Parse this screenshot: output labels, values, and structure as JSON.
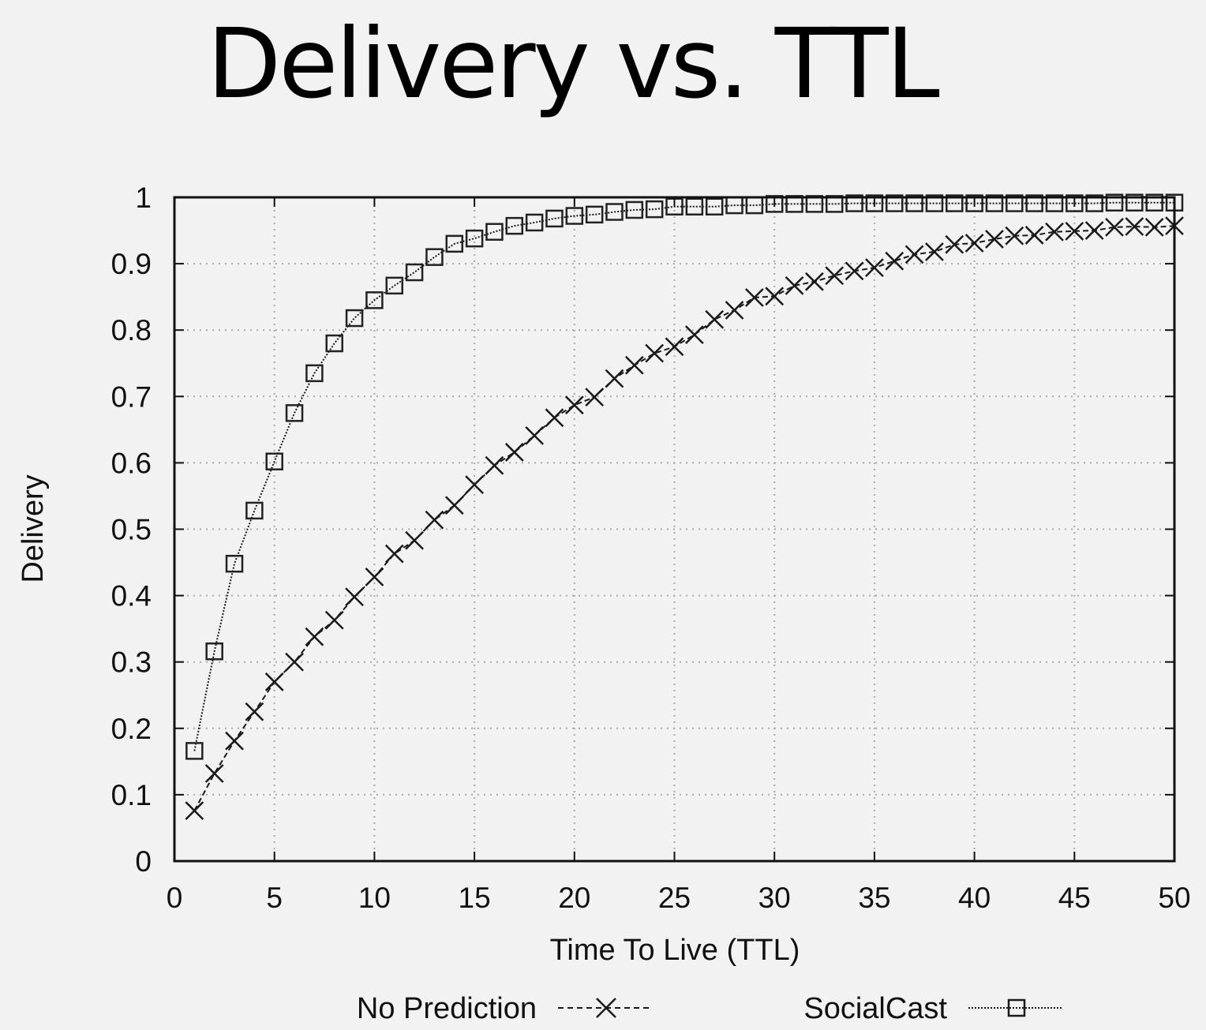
{
  "slide": {
    "title": "Delivery vs. TTL"
  },
  "chart_data": {
    "type": "line",
    "title": "Delivery vs. TTL",
    "xlabel": "Time To Live (TTL)",
    "ylabel": "Delivery",
    "xlim": [
      0,
      50
    ],
    "ylim": [
      0,
      1
    ],
    "xticks": [
      0,
      5,
      10,
      15,
      20,
      25,
      30,
      35,
      40,
      45,
      50
    ],
    "yticks": [
      0,
      0.1,
      0.2,
      0.3,
      0.4,
      0.5,
      0.6,
      0.7,
      0.8,
      0.9,
      1
    ],
    "ytick_labels": [
      "0",
      "0.1",
      "0.2",
      "0.3",
      "0.4",
      "0.5",
      "0.6",
      "0.7",
      "0.8",
      "0.9",
      "1"
    ],
    "grid": true,
    "legend_position": "bottom",
    "x": [
      1,
      2,
      3,
      4,
      5,
      6,
      7,
      8,
      9,
      10,
      11,
      12,
      13,
      14,
      15,
      16,
      17,
      18,
      19,
      20,
      21,
      22,
      23,
      24,
      25,
      26,
      27,
      28,
      29,
      30,
      31,
      32,
      33,
      34,
      35,
      36,
      37,
      38,
      39,
      40,
      41,
      42,
      43,
      44,
      45,
      46,
      47,
      48,
      49,
      50
    ],
    "series": [
      {
        "name": "No Prediction",
        "marker": "x",
        "line": "dashed",
        "values": [
          0.076,
          0.132,
          0.181,
          0.225,
          0.27,
          0.3,
          0.338,
          0.363,
          0.398,
          0.428,
          0.463,
          0.483,
          0.514,
          0.536,
          0.567,
          0.596,
          0.616,
          0.641,
          0.668,
          0.687,
          0.699,
          0.727,
          0.747,
          0.765,
          0.775,
          0.793,
          0.816,
          0.83,
          0.849,
          0.851,
          0.867,
          0.873,
          0.882,
          0.889,
          0.894,
          0.904,
          0.914,
          0.918,
          0.929,
          0.931,
          0.937,
          0.942,
          0.943,
          0.948,
          0.949,
          0.95,
          0.955,
          0.956,
          0.955,
          0.957
        ]
      },
      {
        "name": "SocialCast",
        "marker": "square",
        "line": "dotted",
        "values": [
          0.166,
          0.316,
          0.448,
          0.528,
          0.602,
          0.675,
          0.735,
          0.78,
          0.818,
          0.845,
          0.867,
          0.887,
          0.91,
          0.93,
          0.938,
          0.948,
          0.957,
          0.962,
          0.968,
          0.972,
          0.974,
          0.978,
          0.981,
          0.982,
          0.986,
          0.986,
          0.986,
          0.988,
          0.988,
          0.99,
          0.99,
          0.99,
          0.99,
          0.991,
          0.991,
          0.991,
          0.991,
          0.991,
          0.991,
          0.991,
          0.991,
          0.991,
          0.991,
          0.991,
          0.991,
          0.991,
          0.992,
          0.992,
          0.992,
          0.992
        ]
      }
    ]
  },
  "colors": {
    "background": "#f2f2f2",
    "axis": "#111111",
    "grid": "#aaaaaa",
    "series": "#1a1a1a"
  }
}
